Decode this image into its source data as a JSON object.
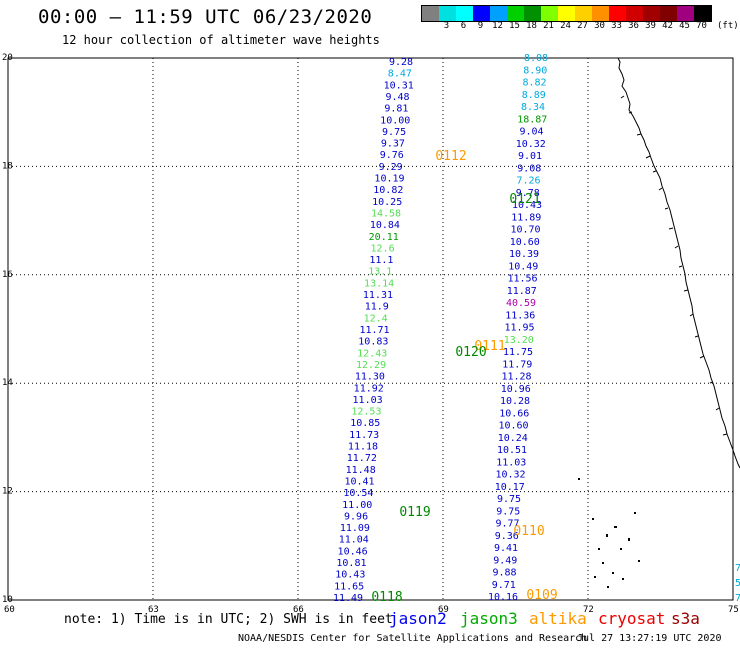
{
  "header": {
    "title": "00:00 – 11:59 UTC 06/23/2020",
    "subtitle": "12 hour collection of altimeter wave heights"
  },
  "legend": {
    "unit": "(ft)",
    "bins": [
      {
        "label": "",
        "color": "#808080"
      },
      {
        "label": "3",
        "color": "#00e0e0"
      },
      {
        "label": "6",
        "color": "#00ffff"
      },
      {
        "label": "9",
        "color": "#0000ff"
      },
      {
        "label": "12",
        "color": "#00a0ff"
      },
      {
        "label": "15",
        "color": "#00d000"
      },
      {
        "label": "18",
        "color": "#009000"
      },
      {
        "label": "21",
        "color": "#80ff00"
      },
      {
        "label": "24",
        "color": "#ffff00"
      },
      {
        "label": "27",
        "color": "#ffd000"
      },
      {
        "label": "30",
        "color": "#ff9000"
      },
      {
        "label": "33",
        "color": "#ff0000"
      },
      {
        "label": "36",
        "color": "#d00000"
      },
      {
        "label": "39",
        "color": "#a00000"
      },
      {
        "label": "42",
        "color": "#800000"
      },
      {
        "label": "45",
        "color": "#a00080"
      },
      {
        "label": "70",
        "color": "#000000"
      }
    ]
  },
  "axes": {
    "x_ticks": [
      "60",
      "63",
      "66",
      "69",
      "72",
      "75"
    ],
    "y_ticks": [
      "10",
      "12",
      "14",
      "16",
      "18",
      "20"
    ],
    "lon_range": [
      60,
      75
    ],
    "lat_range": [
      10,
      20
    ]
  },
  "tracks": {
    "left": [
      {
        "v": "9.28",
        "c": "#0000cc"
      },
      {
        "v": "8.47",
        "c": "#00aadd"
      },
      {
        "v": "10.31",
        "c": "#0000cc"
      },
      {
        "v": "9.48",
        "c": "#0000cc"
      },
      {
        "v": "9.81",
        "c": "#0000cc"
      },
      {
        "v": "10.00",
        "c": "#0000cc"
      },
      {
        "v": "9.75",
        "c": "#0000cc"
      },
      {
        "v": "9.37",
        "c": "#0000cc"
      },
      {
        "v": "9.76",
        "c": "#0000cc"
      },
      {
        "v": "9.29",
        "c": "#0000cc"
      },
      {
        "v": "10.19",
        "c": "#0000cc"
      },
      {
        "v": "10.82",
        "c": "#0000cc"
      },
      {
        "v": "10.25",
        "c": "#0000cc"
      },
      {
        "v": "14.58",
        "c": "#55dd55"
      },
      {
        "v": "10.84",
        "c": "#0000cc"
      },
      {
        "v": "20.11",
        "c": "#009900"
      },
      {
        "v": "12.6",
        "c": "#55dd55"
      },
      {
        "v": "11.1",
        "c": "#0000cc"
      },
      {
        "v": "13.1",
        "c": "#55dd55"
      },
      {
        "v": "13.14",
        "c": "#55dd55"
      },
      {
        "v": "11.31",
        "c": "#0000cc"
      },
      {
        "v": "11.9",
        "c": "#0000cc"
      },
      {
        "v": "12.4",
        "c": "#55dd55"
      },
      {
        "v": "11.71",
        "c": "#0000cc"
      },
      {
        "v": "10.83",
        "c": "#0000cc"
      },
      {
        "v": "12.43",
        "c": "#55dd55"
      },
      {
        "v": "12.29",
        "c": "#55dd55"
      },
      {
        "v": "11.30",
        "c": "#0000cc"
      },
      {
        "v": "11.92",
        "c": "#0000cc"
      },
      {
        "v": "11.03",
        "c": "#0000cc"
      },
      {
        "v": "12.53",
        "c": "#55dd55"
      },
      {
        "v": "10.85",
        "c": "#0000cc"
      },
      {
        "v": "11.73",
        "c": "#0000cc"
      },
      {
        "v": "11.18",
        "c": "#0000cc"
      },
      {
        "v": "11.72",
        "c": "#0000cc"
      },
      {
        "v": "11.48",
        "c": "#0000cc"
      },
      {
        "v": "10.41",
        "c": "#0000cc"
      },
      {
        "v": "10.54",
        "c": "#0000cc"
      },
      {
        "v": "11.00",
        "c": "#0000cc"
      },
      {
        "v": "9.96",
        "c": "#0000cc"
      },
      {
        "v": "11.09",
        "c": "#0000cc"
      },
      {
        "v": "11.04",
        "c": "#0000cc"
      },
      {
        "v": "10.46",
        "c": "#0000cc"
      },
      {
        "v": "10.81",
        "c": "#0000cc"
      },
      {
        "v": "10.43",
        "c": "#0000cc"
      },
      {
        "v": "11.65",
        "c": "#0000cc"
      },
      {
        "v": "11.49",
        "c": "#0000cc"
      }
    ],
    "right": [
      {
        "v": "8.08",
        "c": "#00aadd"
      },
      {
        "v": "8.90",
        "c": "#00aadd"
      },
      {
        "v": "8.82",
        "c": "#00aadd"
      },
      {
        "v": "8.89",
        "c": "#00aadd"
      },
      {
        "v": "8.34",
        "c": "#00aadd"
      },
      {
        "v": "18.87",
        "c": "#009900"
      },
      {
        "v": "9.04",
        "c": "#0000cc"
      },
      {
        "v": "10.32",
        "c": "#0000cc"
      },
      {
        "v": "9.01",
        "c": "#0000cc"
      },
      {
        "v": "9.08",
        "c": "#0000cc"
      },
      {
        "v": "7.26",
        "c": "#00aadd"
      },
      {
        "v": "9.78",
        "c": "#0000cc"
      },
      {
        "v": "10.43",
        "c": "#0000cc"
      },
      {
        "v": "11.89",
        "c": "#0000cc"
      },
      {
        "v": "10.70",
        "c": "#0000cc"
      },
      {
        "v": "10.60",
        "c": "#0000cc"
      },
      {
        "v": "10.39",
        "c": "#0000cc"
      },
      {
        "v": "10.49",
        "c": "#0000cc"
      },
      {
        "v": "11.56",
        "c": "#0000cc"
      },
      {
        "v": "11.87",
        "c": "#0000cc"
      },
      {
        "v": "40.59",
        "c": "#aa00aa"
      },
      {
        "v": "11.36",
        "c": "#0000cc"
      },
      {
        "v": "11.95",
        "c": "#0000cc"
      },
      {
        "v": "13.20",
        "c": "#55dd55"
      },
      {
        "v": "11.75",
        "c": "#0000cc"
      },
      {
        "v": "11.79",
        "c": "#0000cc"
      },
      {
        "v": "11.28",
        "c": "#0000cc"
      },
      {
        "v": "10.96",
        "c": "#0000cc"
      },
      {
        "v": "10.28",
        "c": "#0000cc"
      },
      {
        "v": "10.66",
        "c": "#0000cc"
      },
      {
        "v": "10.60",
        "c": "#0000cc"
      },
      {
        "v": "10.24",
        "c": "#0000cc"
      },
      {
        "v": "10.51",
        "c": "#0000cc"
      },
      {
        "v": "11.03",
        "c": "#0000cc"
      },
      {
        "v": "10.32",
        "c": "#0000cc"
      },
      {
        "v": "10.17",
        "c": "#0000cc"
      },
      {
        "v": "9.75",
        "c": "#0000cc"
      },
      {
        "v": "9.75",
        "c": "#0000cc"
      },
      {
        "v": "9.77",
        "c": "#0000cc"
      },
      {
        "v": "9.36",
        "c": "#0000cc"
      },
      {
        "v": "9.41",
        "c": "#0000cc"
      },
      {
        "v": "9.49",
        "c": "#0000cc"
      },
      {
        "v": "9.88",
        "c": "#0000cc"
      },
      {
        "v": "9.71",
        "c": "#0000cc"
      },
      {
        "v": "10.16",
        "c": "#0000cc"
      }
    ],
    "edge": [
      {
        "v": "7",
        "c": "#00aadd"
      },
      {
        "v": "5",
        "c": "#00aadd"
      },
      {
        "v": "7",
        "c": "#00aadd"
      }
    ]
  },
  "pass_labels": [
    {
      "text": "0112",
      "c": "#ff9900"
    },
    {
      "text": "0121",
      "c": "#008800"
    },
    {
      "text": "0111",
      "c": "#ff9900"
    },
    {
      "text": "0120",
      "c": "#008800"
    },
    {
      "text": "0119",
      "c": "#008800"
    },
    {
      "text": "0110",
      "c": "#ff9900"
    },
    {
      "text": "0118",
      "c": "#008800"
    },
    {
      "text": "0109",
      "c": "#ff9900"
    }
  ],
  "footer": {
    "note": "note: 1) Time is in UTC; 2) SWH is in feet",
    "satellites": [
      {
        "name": "jason2",
        "color": "#0000ee"
      },
      {
        "name": "jason3",
        "color": "#00aa00"
      },
      {
        "name": "altika",
        "color": "#ff9900"
      },
      {
        "name": "cryosat",
        "color": "#ee0000"
      },
      {
        "name": "s3a",
        "color": "#990000"
      }
    ],
    "credit": "NOAA/NESDIS Center for Satellite Applications and Research",
    "timestamp": "Jul 27 13:27:19 UTC 2020"
  }
}
